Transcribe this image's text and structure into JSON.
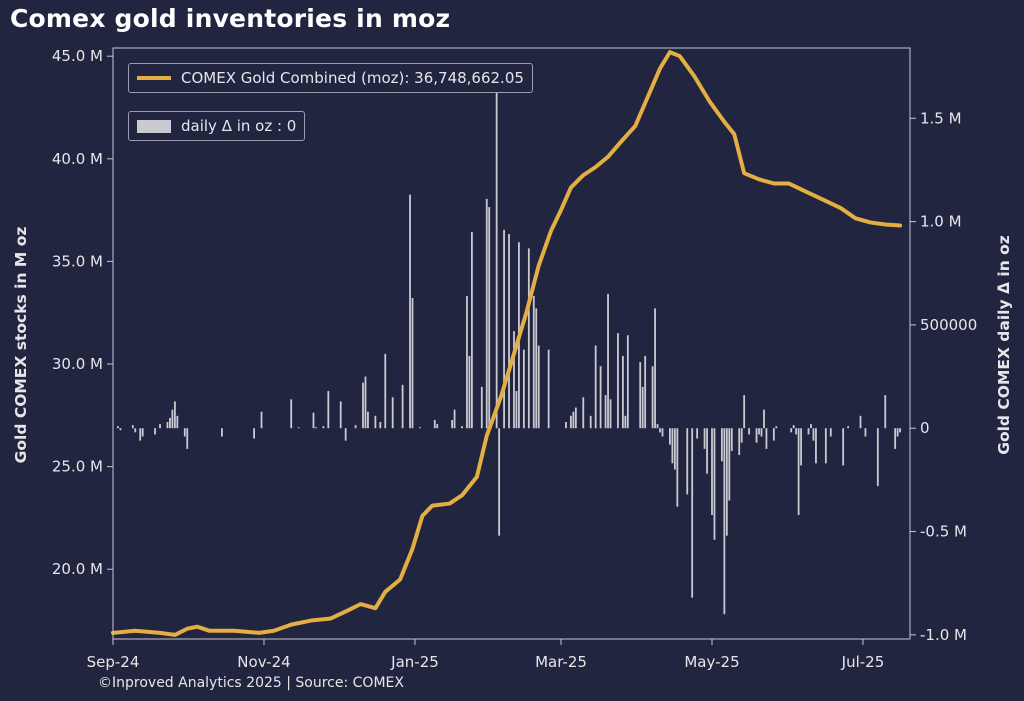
{
  "title": "Comex gold inventories in moz",
  "credit": "©Inproved Analytics 2025 | Source: COMEX",
  "legend": {
    "line_label": "COMEX Gold Combined (moz): 36,748,662.05",
    "bar_label": "daily Δ in oz : 0"
  },
  "colors": {
    "background": "#22253f",
    "line": "#e3ae42",
    "bars": "#c9cad2",
    "axis": "#c8c9d2"
  },
  "chart_data": {
    "type": "line",
    "title": "Comex gold inventories in moz",
    "xlabel": "",
    "ylabel": "Gold COMEX stocks in M oz",
    "y2label": "Gold COMEX daily Δ in oz",
    "xlim": [
      "2024-09-01",
      "2025-07-20"
    ],
    "ylim": [
      16.6,
      45.4
    ],
    "y2lim": [
      -1020000,
      1840000
    ],
    "x_ticks": [
      {
        "date": "2024-09-01",
        "label": "Sep-24"
      },
      {
        "date": "2024-11-01",
        "label": "Nov-24"
      },
      {
        "date": "2025-01-01",
        "label": "Jan-25"
      },
      {
        "date": "2025-03-01",
        "label": "Mar-25"
      },
      {
        "date": "2025-05-01",
        "label": "May-25"
      },
      {
        "date": "2025-07-01",
        "label": "Jul-25"
      }
    ],
    "y_ticks": [
      {
        "value": 20,
        "label": "20.0 M"
      },
      {
        "value": 25,
        "label": "25.0 M"
      },
      {
        "value": 30,
        "label": "30.0 M"
      },
      {
        "value": 35,
        "label": "35.0 M"
      },
      {
        "value": 40,
        "label": "40.0 M"
      },
      {
        "value": 45,
        "label": "45.0 M"
      }
    ],
    "y2_ticks": [
      {
        "value": -1000000,
        "label": "-1.0 M"
      },
      {
        "value": -500000,
        "label": "-0.5 M"
      },
      {
        "value": 0,
        "label": "0"
      },
      {
        "value": 500000,
        "label": "500000"
      },
      {
        "value": 1000000,
        "label": "1.0 M"
      },
      {
        "value": 1500000,
        "label": "1.5 M"
      }
    ],
    "series": [
      {
        "name": "COMEX Gold Combined (moz): 36,748,662.05",
        "kind": "line",
        "points": [
          [
            "2024-09-01",
            16.9
          ],
          [
            "2024-09-10",
            17.0
          ],
          [
            "2024-09-20",
            16.9
          ],
          [
            "2024-09-26",
            16.8
          ],
          [
            "2024-10-01",
            17.1
          ],
          [
            "2024-10-05",
            17.2
          ],
          [
            "2024-10-10",
            17.0
          ],
          [
            "2024-10-20",
            17.0
          ],
          [
            "2024-10-30",
            16.9
          ],
          [
            "2024-11-05",
            17.0
          ],
          [
            "2024-11-12",
            17.3
          ],
          [
            "2024-11-20",
            17.5
          ],
          [
            "2024-11-28",
            17.6
          ],
          [
            "2024-12-05",
            18.0
          ],
          [
            "2024-12-10",
            18.3
          ],
          [
            "2024-12-16",
            18.1
          ],
          [
            "2024-12-20",
            18.9
          ],
          [
            "2024-12-26",
            19.5
          ],
          [
            "2024-12-31",
            21.0
          ],
          [
            "2025-01-04",
            22.6
          ],
          [
            "2025-01-08",
            23.1
          ],
          [
            "2025-01-15",
            23.2
          ],
          [
            "2025-01-20",
            23.6
          ],
          [
            "2025-01-26",
            24.5
          ],
          [
            "2025-01-30",
            26.5
          ],
          [
            "2025-02-05",
            28.5
          ],
          [
            "2025-02-10",
            30.5
          ],
          [
            "2025-02-15",
            32.5
          ],
          [
            "2025-02-20",
            34.8
          ],
          [
            "2025-02-25",
            36.5
          ],
          [
            "2025-03-01",
            37.5
          ],
          [
            "2025-03-05",
            38.6
          ],
          [
            "2025-03-10",
            39.2
          ],
          [
            "2025-03-15",
            39.6
          ],
          [
            "2025-03-20",
            40.1
          ],
          [
            "2025-03-25",
            40.8
          ],
          [
            "2025-03-31",
            41.6
          ],
          [
            "2025-04-05",
            43.0
          ],
          [
            "2025-04-10",
            44.4
          ],
          [
            "2025-04-14",
            45.2
          ],
          [
            "2025-04-18",
            45.0
          ],
          [
            "2025-04-24",
            44.0
          ],
          [
            "2025-04-30",
            42.8
          ],
          [
            "2025-05-06",
            41.8
          ],
          [
            "2025-05-10",
            41.2
          ],
          [
            "2025-05-14",
            39.3
          ],
          [
            "2025-05-20",
            39.0
          ],
          [
            "2025-05-26",
            38.8
          ],
          [
            "2025-06-01",
            38.8
          ],
          [
            "2025-06-08",
            38.4
          ],
          [
            "2025-06-15",
            38.0
          ],
          [
            "2025-06-22",
            37.6
          ],
          [
            "2025-06-28",
            37.1
          ],
          [
            "2025-07-04",
            36.9
          ],
          [
            "2025-07-10",
            36.8
          ],
          [
            "2025-07-16",
            36.75
          ]
        ]
      },
      {
        "name": "daily Δ in oz : 0",
        "kind": "bar",
        "axis": "right",
        "points": [
          [
            "2024-09-03",
            10000
          ],
          [
            "2024-09-04",
            -10000
          ],
          [
            "2024-09-09",
            15000
          ],
          [
            "2024-09-10",
            -20000
          ],
          [
            "2024-09-12",
            -60000
          ],
          [
            "2024-09-13",
            -40000
          ],
          [
            "2024-09-18",
            -30000
          ],
          [
            "2024-09-20",
            20000
          ],
          [
            "2024-09-23",
            30000
          ],
          [
            "2024-09-24",
            50000
          ],
          [
            "2024-09-25",
            90000
          ],
          [
            "2024-09-26",
            130000
          ],
          [
            "2024-09-27",
            60000
          ],
          [
            "2024-09-30",
            -40000
          ],
          [
            "2024-10-01",
            -100000
          ],
          [
            "2024-10-15",
            -40000
          ],
          [
            "2024-10-28",
            -50000
          ],
          [
            "2024-10-31",
            80000
          ],
          [
            "2024-11-12",
            140000
          ],
          [
            "2024-11-15",
            5000
          ],
          [
            "2024-11-21",
            75000
          ],
          [
            "2024-11-22",
            5000
          ],
          [
            "2024-11-25",
            10000
          ],
          [
            "2024-11-27",
            180000
          ],
          [
            "2024-12-02",
            130000
          ],
          [
            "2024-12-04",
            -60000
          ],
          [
            "2024-12-08",
            15000
          ],
          [
            "2024-12-11",
            220000
          ],
          [
            "2024-12-12",
            250000
          ],
          [
            "2024-12-13",
            80000
          ],
          [
            "2024-12-16",
            60000
          ],
          [
            "2024-12-18",
            30000
          ],
          [
            "2024-12-20",
            360000
          ],
          [
            "2024-12-23",
            150000
          ],
          [
            "2024-12-27",
            210000
          ],
          [
            "2024-12-30",
            1130000
          ],
          [
            "2024-12-31",
            630000
          ],
          [
            "2025-01-03",
            5000
          ],
          [
            "2025-01-09",
            40000
          ],
          [
            "2025-01-10",
            20000
          ],
          [
            "2025-01-16",
            40000
          ],
          [
            "2025-01-17",
            90000
          ],
          [
            "2025-01-20",
            10000
          ],
          [
            "2025-01-22",
            640000
          ],
          [
            "2025-01-23",
            350000
          ],
          [
            "2025-01-24",
            950000
          ],
          [
            "2025-01-28",
            200000
          ],
          [
            "2025-01-30",
            1110000
          ],
          [
            "2025-01-31",
            1070000
          ],
          [
            "2025-02-03",
            1680000
          ],
          [
            "2025-02-04",
            -520000
          ],
          [
            "2025-02-06",
            960000
          ],
          [
            "2025-02-08",
            940000
          ],
          [
            "2025-02-10",
            470000
          ],
          [
            "2025-02-11",
            180000
          ],
          [
            "2025-02-12",
            900000
          ],
          [
            "2025-02-14",
            380000
          ],
          [
            "2025-02-16",
            870000
          ],
          [
            "2025-02-18",
            640000
          ],
          [
            "2025-02-19",
            580000
          ],
          [
            "2025-02-20",
            400000
          ],
          [
            "2025-02-24",
            380000
          ],
          [
            "2025-03-03",
            30000
          ],
          [
            "2025-03-05",
            60000
          ],
          [
            "2025-03-06",
            80000
          ],
          [
            "2025-03-07",
            100000
          ],
          [
            "2025-03-10",
            150000
          ],
          [
            "2025-03-13",
            60000
          ],
          [
            "2025-03-15",
            400000
          ],
          [
            "2025-03-17",
            300000
          ],
          [
            "2025-03-19",
            160000
          ],
          [
            "2025-03-20",
            650000
          ],
          [
            "2025-03-21",
            140000
          ],
          [
            "2025-03-24",
            460000
          ],
          [
            "2025-03-26",
            350000
          ],
          [
            "2025-03-27",
            60000
          ],
          [
            "2025-03-28",
            450000
          ],
          [
            "2025-04-02",
            320000
          ],
          [
            "2025-04-03",
            200000
          ],
          [
            "2025-04-04",
            350000
          ],
          [
            "2025-04-07",
            300000
          ],
          [
            "2025-04-08",
            580000
          ],
          [
            "2025-04-09",
            20000
          ],
          [
            "2025-04-10",
            -20000
          ],
          [
            "2025-04-11",
            -40000
          ],
          [
            "2025-04-14",
            -80000
          ],
          [
            "2025-04-15",
            -170000
          ],
          [
            "2025-04-16",
            -200000
          ],
          [
            "2025-04-17",
            -380000
          ],
          [
            "2025-04-21",
            -320000
          ],
          [
            "2025-04-23",
            -820000
          ],
          [
            "2025-04-25",
            -50000
          ],
          [
            "2025-04-28",
            -100000
          ],
          [
            "2025-04-29",
            -220000
          ],
          [
            "2025-05-01",
            -420000
          ],
          [
            "2025-05-02",
            -540000
          ],
          [
            "2025-05-05",
            -160000
          ],
          [
            "2025-05-06",
            -900000
          ],
          [
            "2025-05-07",
            -520000
          ],
          [
            "2025-05-08",
            -350000
          ],
          [
            "2025-05-09",
            -110000
          ],
          [
            "2025-05-12",
            -130000
          ],
          [
            "2025-05-13",
            -70000
          ],
          [
            "2025-05-14",
            160000
          ],
          [
            "2025-05-16",
            -30000
          ],
          [
            "2025-05-19",
            -70000
          ],
          [
            "2025-05-20",
            -30000
          ],
          [
            "2025-05-21",
            -40000
          ],
          [
            "2025-05-22",
            90000
          ],
          [
            "2025-05-23",
            -100000
          ],
          [
            "2025-05-26",
            -60000
          ],
          [
            "2025-05-27",
            10000
          ],
          [
            "2025-06-02",
            -20000
          ],
          [
            "2025-06-03",
            15000
          ],
          [
            "2025-06-04",
            -30000
          ],
          [
            "2025-06-05",
            -420000
          ],
          [
            "2025-06-06",
            -180000
          ],
          [
            "2025-06-09",
            -30000
          ],
          [
            "2025-06-10",
            20000
          ],
          [
            "2025-06-11",
            -60000
          ],
          [
            "2025-06-12",
            -170000
          ],
          [
            "2025-06-16",
            -170000
          ],
          [
            "2025-06-18",
            -40000
          ],
          [
            "2025-06-23",
            -180000
          ],
          [
            "2025-06-25",
            10000
          ],
          [
            "2025-06-30",
            60000
          ],
          [
            "2025-07-02",
            -40000
          ],
          [
            "2025-07-07",
            -280000
          ],
          [
            "2025-07-10",
            160000
          ],
          [
            "2025-07-14",
            -100000
          ],
          [
            "2025-07-15",
            -40000
          ],
          [
            "2025-07-16",
            -20000
          ]
        ]
      }
    ],
    "grid": false,
    "legend_position": "top-left"
  }
}
